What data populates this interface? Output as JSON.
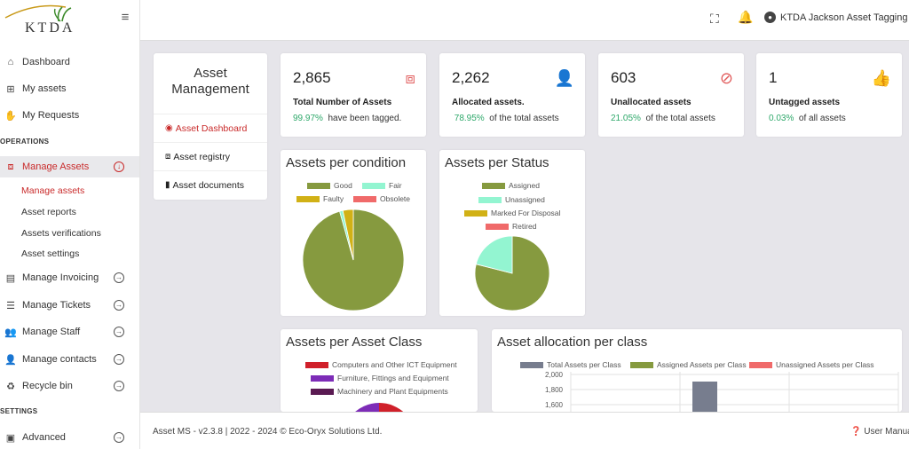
{
  "brand": {
    "logo_text": "KTDA"
  },
  "sidebar": {
    "items": [
      {
        "label": "Dashboard",
        "icon": "home-icon"
      },
      {
        "label": "My assets",
        "icon": "sitemap-icon"
      },
      {
        "label": "My Requests",
        "icon": "hand-icon"
      }
    ],
    "section_operations": "OPERATIONS",
    "manage_assets": {
      "label": "Manage Assets",
      "icon": "cubes-icon"
    },
    "sub_items": [
      "Manage assets",
      "Asset reports",
      "Assets verifications",
      "Asset settings"
    ],
    "ops_items": [
      {
        "label": "Manage Invoicing",
        "icon": "invoice-icon"
      },
      {
        "label": "Manage Tickets",
        "icon": "list-icon"
      },
      {
        "label": "Manage Staff",
        "icon": "users-icon"
      },
      {
        "label": "Manage contacts",
        "icon": "contacts-icon"
      },
      {
        "label": "Recycle bin",
        "icon": "recycle-icon"
      }
    ],
    "section_settings": "SETTINGS",
    "advanced": {
      "label": "Advanced",
      "icon": "briefcase-icon"
    }
  },
  "topbar": {
    "user_name": "KTDA Jackson Asset Tagging"
  },
  "asset_menu": {
    "title": "Asset Management",
    "items": [
      "Asset Dashboard",
      "Asset registry",
      "Asset documents"
    ]
  },
  "stats": [
    {
      "number": "2,865",
      "label": "Total Number of Assets",
      "pct": "99.97%",
      "desc": "have been tagged."
    },
    {
      "number": "2,262",
      "label": "Allocated assets.",
      "pct": "78.95%",
      "desc": "of the total assets"
    },
    {
      "number": "603",
      "label": "Unallocated assets",
      "pct": "21.05%",
      "desc": "of the total assets"
    },
    {
      "number": "1",
      "label": "Untagged assets",
      "pct": "0.03%",
      "desc": "of all assets"
    }
  ],
  "charts": {
    "condition": {
      "title": "Assets per condition",
      "legend": [
        "Good",
        "Fair",
        "Faulty",
        "Obsolete"
      ]
    },
    "status": {
      "title": "Assets per Status",
      "legend": [
        "Assigned",
        "Unassigned",
        "Marked For Disposal",
        "Retired"
      ]
    },
    "asset_class": {
      "title": "Assets per Asset Class",
      "legend": [
        "Computers and Other ICT Equipment",
        "Furniture, Fittings and Equipment",
        "Machinery and Plant Equipments"
      ]
    },
    "allocation": {
      "title": "Asset allocation per class",
      "legend": [
        "Total Assets per Class",
        "Assigned Assets per Class",
        "Unassigned Assets per Class"
      ],
      "ticks": [
        "2,000",
        "1,800",
        "1,600"
      ]
    }
  },
  "chart_data": [
    {
      "type": "pie",
      "title": "Assets per condition",
      "labels": [
        "Good",
        "Fair",
        "Faulty",
        "Obsolete"
      ],
      "values": [
        2740,
        30,
        95,
        0
      ],
      "colors": [
        "#869a3f",
        "#93f5d1",
        "#d1b116",
        "#f06a6a"
      ]
    },
    {
      "type": "pie",
      "title": "Assets per Status",
      "labels": [
        "Assigned",
        "Unassigned",
        "Marked For Disposal",
        "Retired"
      ],
      "values": [
        2262,
        603,
        0,
        0
      ],
      "colors": [
        "#869a3f",
        "#93f5d1",
        "#d1b116",
        "#f06a6a"
      ]
    },
    {
      "type": "pie",
      "title": "Assets per Asset Class",
      "labels": [
        "Computers and Other ICT Equipment",
        "Furniture, Fittings and Equipment",
        "Machinery and Plant Equipments"
      ],
      "colors": [
        "#d0202a",
        "#7d2cb7",
        "#5a1a52"
      ]
    },
    {
      "type": "bar",
      "title": "Asset allocation per class",
      "series": [
        {
          "name": "Total Assets per Class",
          "values": [
            1900
          ]
        },
        {
          "name": "Assigned Assets per Class",
          "values": []
        },
        {
          "name": "Unassigned Assets per Class",
          "values": []
        }
      ],
      "colors": [
        "#777d8e",
        "#869a3f",
        "#f06a6a"
      ],
      "ylim": [
        1600,
        2000
      ]
    }
  ],
  "footer": {
    "text": "Asset MS - v2.3.8 | 2022 - 2024 © Eco-Oryx Solutions Ltd.",
    "user_manual": "User Manual"
  }
}
